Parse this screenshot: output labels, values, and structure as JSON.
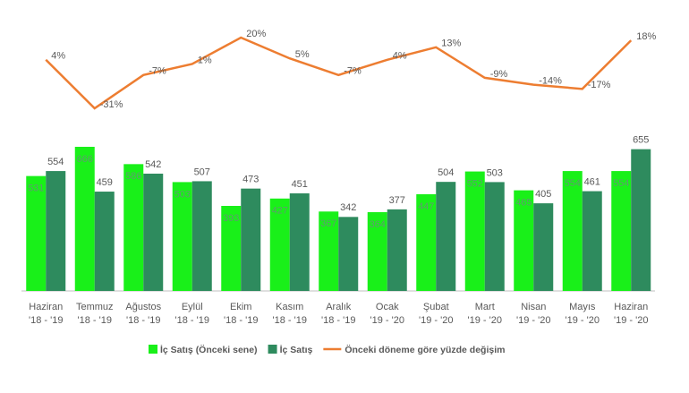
{
  "chart_data": {
    "type": "combo",
    "categories": [
      [
        "Haziran",
        "'18 - '19"
      ],
      [
        "Temmuz",
        "'18 - '19"
      ],
      [
        "Ağustos",
        "'18 - '19"
      ],
      [
        "Eylül",
        "'18 - '19"
      ],
      [
        "Ekim",
        "'18 - '19"
      ],
      [
        "Kasım",
        "'18 - '19"
      ],
      [
        "Aralık",
        "'18 - '19"
      ],
      [
        "Ocak",
        "'19 - '20"
      ],
      [
        "Şubat",
        "'19 - '20"
      ],
      [
        "Mart",
        "'19 - '20"
      ],
      [
        "Nisan",
        "'19 - '20"
      ],
      [
        "Mayıs",
        "'19 - '20"
      ],
      [
        "Haziran",
        "'19 - '20"
      ]
    ],
    "series": [
      {
        "name": "İç Satış (Önceki sene)",
        "type": "bar",
        "color": "#19f019",
        "values": [
          531,
          666,
          586,
          503,
          393,
          427,
          367,
          364,
          447,
          552,
          465,
          554,
          554
        ]
      },
      {
        "name": "İç Satış",
        "type": "bar",
        "color": "#2e8b5e",
        "values": [
          554,
          459,
          542,
          507,
          473,
          451,
          342,
          377,
          504,
          503,
          405,
          461,
          655
        ]
      },
      {
        "name": "Önceki döneme göre yüzde değişim",
        "type": "line",
        "color": "#ed7d31",
        "values": [
          4,
          -31,
          -7,
          1,
          20,
          5,
          -7,
          4,
          13,
          -9,
          -14,
          -17,
          18
        ],
        "value_labels": [
          "4%",
          "-31%",
          "-7%",
          "1%",
          "20%",
          "5%",
          "-7%",
          "4%",
          "13%",
          "-9%",
          "-14%",
          "-17%",
          "18%"
        ]
      }
    ],
    "legend": "bottom"
  }
}
